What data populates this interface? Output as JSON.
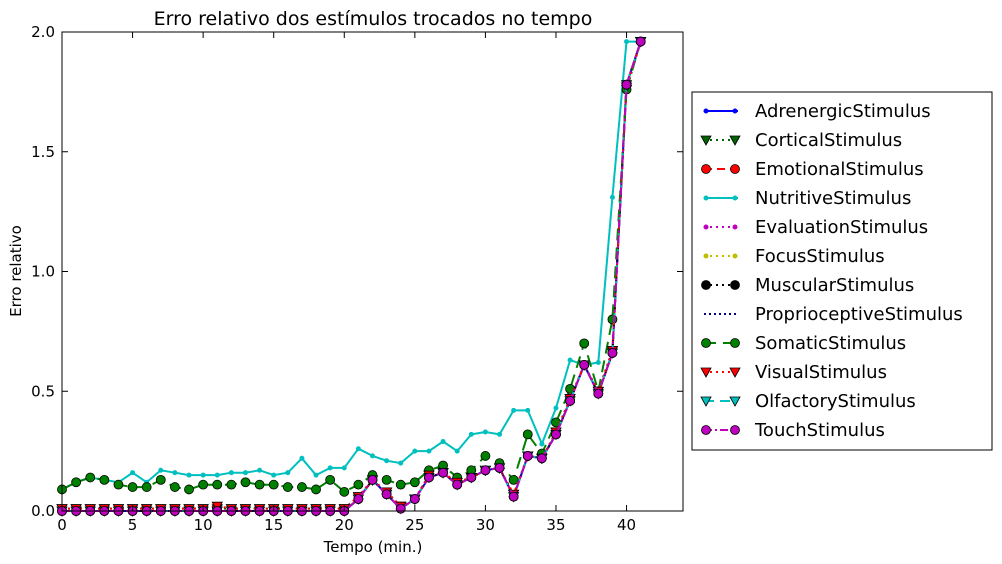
{
  "chart_data": {
    "type": "line",
    "title": "Erro relativo dos estímulos trocados no tempo",
    "xlabel": "Tempo (min.)",
    "ylabel": "Erro relativo",
    "xlim": [
      0,
      44
    ],
    "ylim": [
      0,
      2.0
    ],
    "xticks": [
      0,
      5,
      10,
      15,
      20,
      25,
      30,
      35,
      40
    ],
    "xtick_labels": [
      "0",
      "5",
      "10",
      "15",
      "20",
      "25",
      "30",
      "35",
      "40"
    ],
    "yticks": [
      0.0,
      0.5,
      1.0,
      1.5,
      2.0
    ],
    "ytick_labels": [
      "0.0",
      "0.5",
      "1.0",
      "1.5",
      "2.0"
    ],
    "grid": false,
    "legend_position": "outside-right",
    "x": [
      0,
      1,
      2,
      3,
      4,
      5,
      6,
      7,
      8,
      9,
      10,
      11,
      12,
      13,
      14,
      15,
      16,
      17,
      18,
      19,
      20,
      21,
      22,
      23,
      24,
      25,
      26,
      27,
      28,
      29,
      30,
      31,
      32,
      33,
      34,
      35,
      36,
      37,
      38,
      39,
      40,
      41
    ],
    "series": [
      {
        "name": "AdrenergicStimulus",
        "color": "#0000ff",
        "dash": "",
        "marker": "smallcircle",
        "values": [
          0,
          0,
          0,
          0,
          0,
          0,
          0,
          0,
          0,
          0,
          0,
          0,
          0,
          0,
          0,
          0,
          0,
          0,
          0,
          0,
          0,
          0.05,
          0.13,
          0.07,
          0.01,
          0.05,
          0.14,
          0.16,
          0.11,
          0.14,
          0.17,
          0.18,
          0.06,
          0.23,
          0.22,
          0.32,
          0.46,
          0.61,
          0.49,
          0.66,
          1.78,
          1.96
        ]
      },
      {
        "name": "CorticalStimulus",
        "color": "#006400",
        "dash": "2,4",
        "marker": "triangle-down",
        "values": [
          0.01,
          0.01,
          0.01,
          0.01,
          0.01,
          0.01,
          0.01,
          0.01,
          0.01,
          0.01,
          0.01,
          0.01,
          0.01,
          0.01,
          0.01,
          0.01,
          0.01,
          0.01,
          0.01,
          0.01,
          0.01,
          0.06,
          0.13,
          0.08,
          0.02,
          0.05,
          0.15,
          0.16,
          0.12,
          0.14,
          0.17,
          0.18,
          0.07,
          0.23,
          0.22,
          0.33,
          0.47,
          0.61,
          0.5,
          0.67,
          1.76,
          1.96
        ]
      },
      {
        "name": "EmotionalStimulus",
        "color": "#ff0000",
        "dash": "8,5",
        "marker": "circle",
        "values": [
          0,
          0,
          0,
          0,
          0,
          0,
          0,
          0,
          0,
          0,
          0,
          0,
          0,
          0,
          0,
          0,
          0,
          0,
          0,
          0,
          0,
          0.05,
          0.13,
          0.07,
          0.01,
          0.05,
          0.14,
          0.16,
          0.11,
          0.14,
          0.17,
          0.18,
          0.06,
          0.23,
          0.22,
          0.32,
          0.46,
          0.61,
          0.49,
          0.66,
          1.78,
          1.96
        ]
      },
      {
        "name": "NutritiveStimulus",
        "color": "#00bfbf",
        "dash": "",
        "marker": "smallcircle",
        "values": [
          0.09,
          0.12,
          0.14,
          0.13,
          0.12,
          0.16,
          0.12,
          0.17,
          0.16,
          0.15,
          0.15,
          0.15,
          0.16,
          0.16,
          0.17,
          0.15,
          0.16,
          0.22,
          0.15,
          0.18,
          0.18,
          0.26,
          0.23,
          0.21,
          0.2,
          0.25,
          0.25,
          0.29,
          0.25,
          0.32,
          0.33,
          0.32,
          0.42,
          0.42,
          0.28,
          0.43,
          0.63,
          0.61,
          0.62,
          1.31,
          1.96,
          1.96
        ]
      },
      {
        "name": "EvaluationStimulus",
        "color": "#bf00bf",
        "dash": "2,4",
        "marker": "smallcircle",
        "values": [
          0,
          0,
          0,
          0,
          0,
          0,
          0,
          0,
          0,
          0,
          0,
          0,
          0,
          0,
          0,
          0,
          0,
          0,
          0,
          0,
          0,
          0.05,
          0.13,
          0.07,
          0.01,
          0.05,
          0.14,
          0.16,
          0.11,
          0.14,
          0.17,
          0.18,
          0.06,
          0.23,
          0.22,
          0.32,
          0.46,
          0.61,
          0.49,
          0.66,
          1.78,
          1.96
        ]
      },
      {
        "name": "FocusStimulus",
        "color": "#bfbf00",
        "dash": "2,4",
        "marker": "smallcircle",
        "values": [
          0,
          0,
          0,
          0,
          0,
          0,
          0,
          0,
          0,
          0,
          0,
          0,
          0,
          0,
          0,
          0,
          0,
          0,
          0,
          0,
          0,
          0.05,
          0.13,
          0.07,
          0.01,
          0.05,
          0.14,
          0.16,
          0.11,
          0.14,
          0.17,
          0.18,
          0.06,
          0.23,
          0.22,
          0.32,
          0.46,
          0.61,
          0.49,
          0.66,
          1.78,
          1.96
        ]
      },
      {
        "name": "MuscularStimulus",
        "color": "#000000",
        "dash": "2,4",
        "marker": "circle",
        "values": [
          0,
          0,
          0,
          0,
          0,
          0,
          0,
          0,
          0,
          0,
          0,
          0,
          0,
          0,
          0,
          0,
          0,
          0,
          0,
          0,
          0,
          0.05,
          0.13,
          0.07,
          0.01,
          0.05,
          0.14,
          0.16,
          0.11,
          0.14,
          0.17,
          0.18,
          0.06,
          0.23,
          0.22,
          0.32,
          0.46,
          0.61,
          0.49,
          0.66,
          1.78,
          1.96
        ]
      },
      {
        "name": "ProprioceptiveStimulus",
        "color": "#00008b",
        "dash": "2,3",
        "marker": "none",
        "values": [
          0,
          0,
          0,
          0,
          0,
          0,
          0,
          0,
          0,
          0,
          0,
          0,
          0,
          0,
          0,
          0,
          0,
          0,
          0,
          0,
          0,
          0.05,
          0.13,
          0.07,
          0.01,
          0.05,
          0.14,
          0.16,
          0.11,
          0.14,
          0.17,
          0.18,
          0.06,
          0.23,
          0.22,
          0.32,
          0.46,
          0.61,
          0.49,
          0.66,
          1.78,
          1.96
        ]
      },
      {
        "name": "SomaticStimulus",
        "color": "#008000",
        "dash": "12,7",
        "marker": "circle",
        "values": [
          0.09,
          0.12,
          0.14,
          0.13,
          0.11,
          0.1,
          0.1,
          0.13,
          0.1,
          0.09,
          0.11,
          0.11,
          0.11,
          0.12,
          0.11,
          0.11,
          0.1,
          0.1,
          0.09,
          0.13,
          0.08,
          0.11,
          0.15,
          0.13,
          0.11,
          0.12,
          0.17,
          0.19,
          0.14,
          0.17,
          0.23,
          0.2,
          0.13,
          0.32,
          0.24,
          0.37,
          0.51,
          0.7,
          0.5,
          0.8,
          1.76,
          1.96
        ]
      },
      {
        "name": "VisualStimulus",
        "color": "#ff0000",
        "dash": "2,4",
        "marker": "triangle-down",
        "values": [
          0.01,
          0.01,
          0.01,
          0.01,
          0.01,
          0.01,
          0.01,
          0.01,
          0.01,
          0.01,
          0.01,
          0.02,
          0.01,
          0.01,
          0.01,
          0.01,
          0.01,
          0.01,
          0.01,
          0.01,
          0.01,
          0.06,
          0.13,
          0.08,
          0.02,
          0.05,
          0.15,
          0.16,
          0.12,
          0.14,
          0.17,
          0.18,
          0.07,
          0.23,
          0.22,
          0.33,
          0.47,
          0.61,
          0.5,
          0.67,
          1.77,
          1.96
        ]
      },
      {
        "name": "OlfactoryStimulus",
        "color": "#00bfbf",
        "dash": "10,6",
        "marker": "triangle-down",
        "values": [
          0,
          0,
          0,
          0,
          0,
          0,
          0,
          0,
          0,
          0,
          0,
          0,
          0,
          0,
          0,
          0,
          0,
          0,
          0,
          0,
          0,
          0.05,
          0.13,
          0.07,
          0.01,
          0.05,
          0.14,
          0.16,
          0.11,
          0.14,
          0.17,
          0.18,
          0.06,
          0.23,
          0.22,
          0.32,
          0.46,
          0.61,
          0.49,
          0.66,
          1.78,
          1.96
        ]
      },
      {
        "name": "TouchStimulus",
        "color": "#bf00bf",
        "dash": "8,3,2,3",
        "marker": "circle",
        "values": [
          0,
          0,
          0,
          0,
          0,
          0,
          0,
          0,
          0,
          0,
          0,
          0,
          0,
          0,
          0,
          0,
          0,
          0,
          0,
          0,
          0,
          0.05,
          0.13,
          0.07,
          0.01,
          0.05,
          0.14,
          0.16,
          0.11,
          0.14,
          0.17,
          0.18,
          0.06,
          0.23,
          0.22,
          0.32,
          0.46,
          0.61,
          0.49,
          0.66,
          1.78,
          1.96
        ]
      }
    ]
  }
}
